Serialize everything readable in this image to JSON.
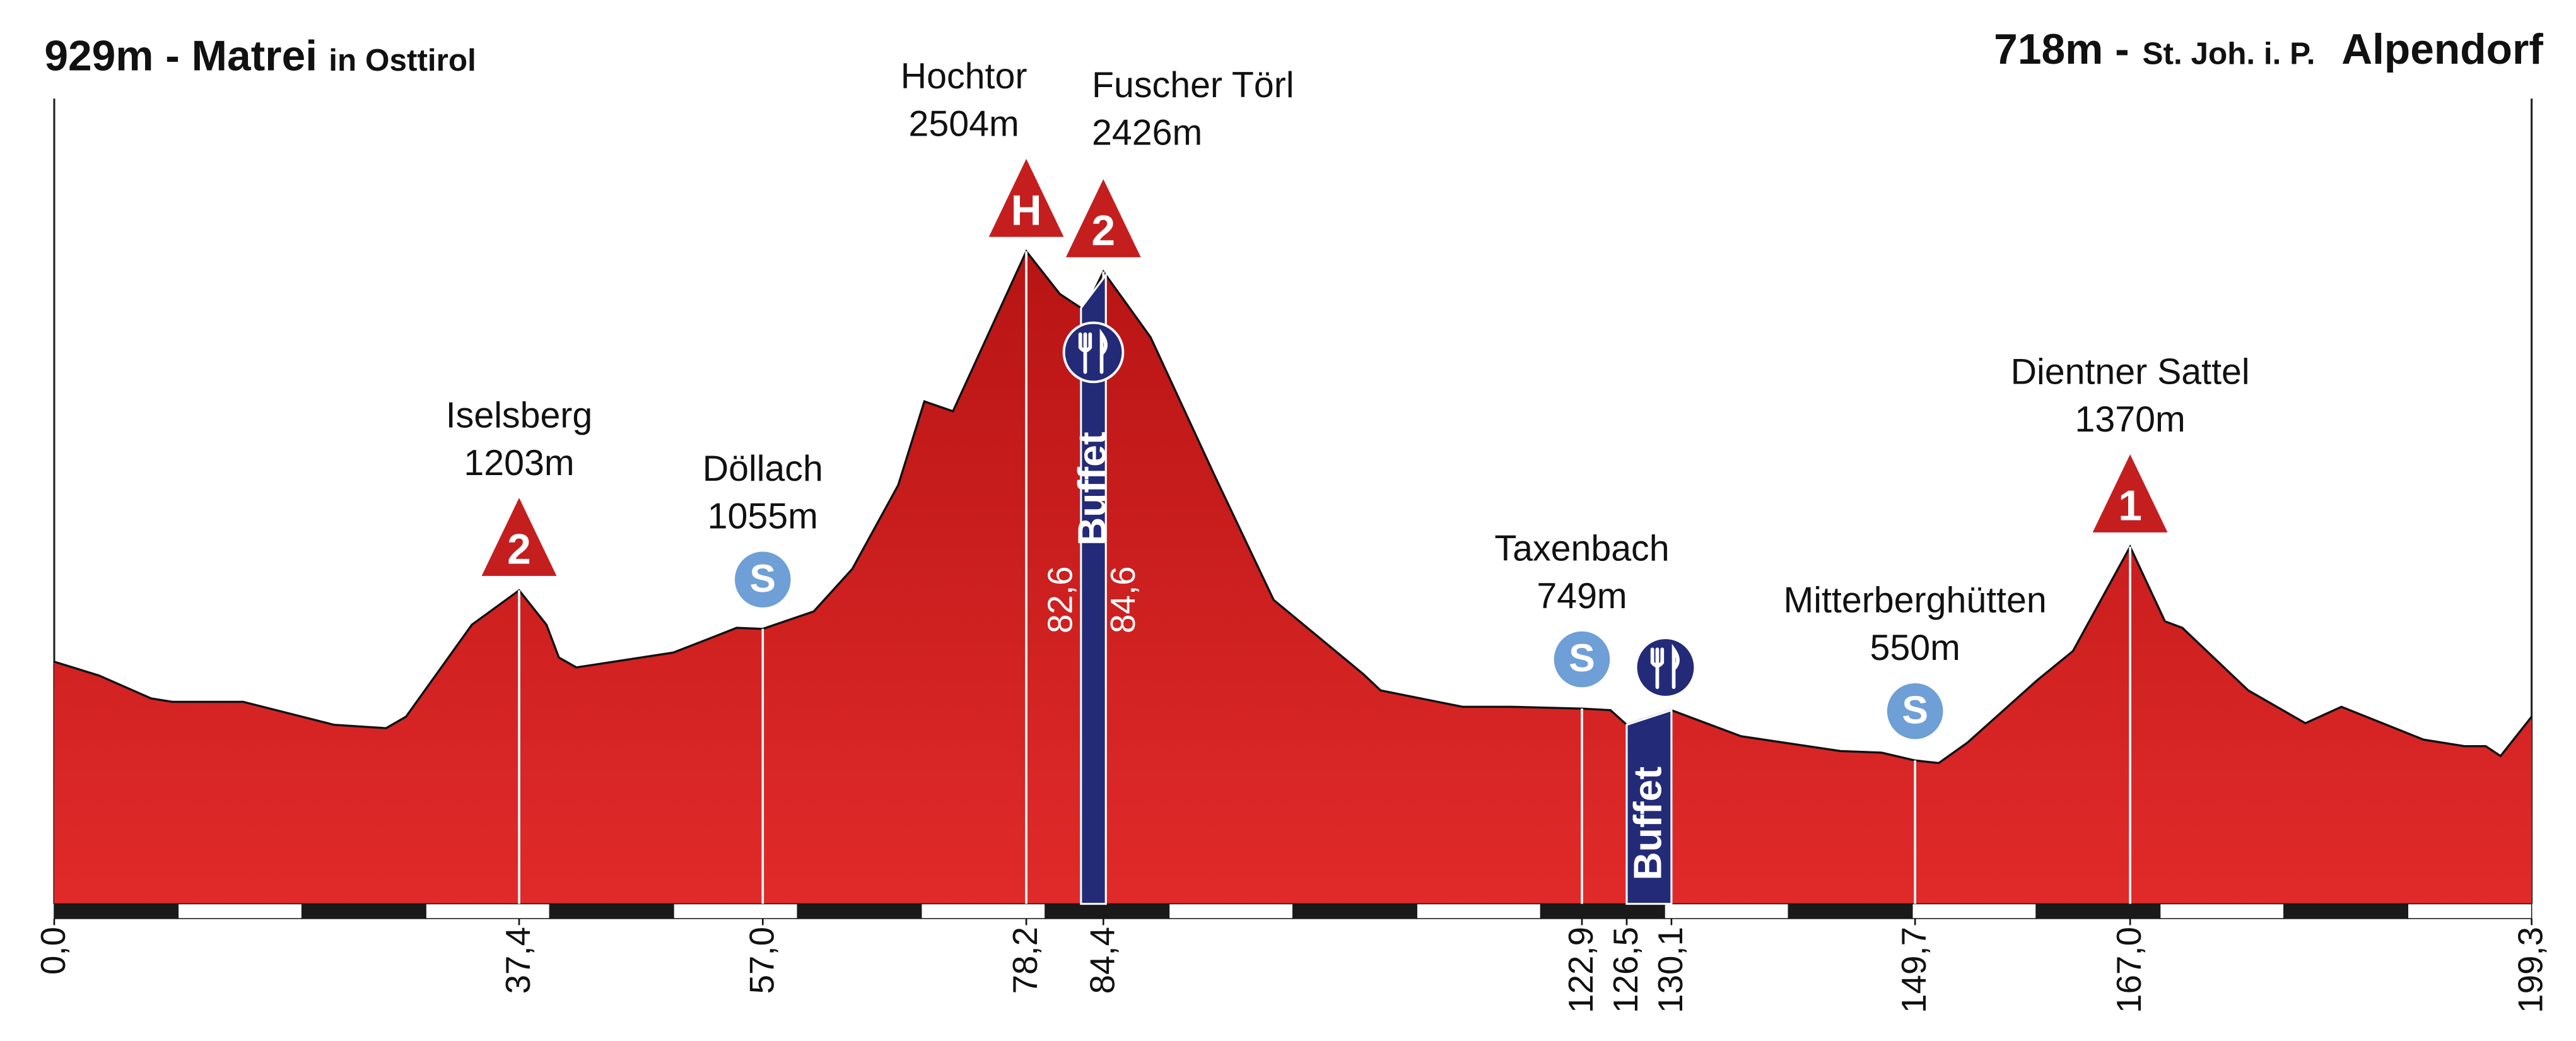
{
  "chart_data": {
    "type": "area",
    "title_left": {
      "main": "929m - Matrei",
      "sub": "in Osttirol"
    },
    "title_right": {
      "main": "718m -",
      "sub": "St. Joh. i. P.",
      "end": "Alpendorf"
    },
    "x": [
      0,
      3.6,
      7.8,
      9.5,
      15.2,
      22.5,
      26.7,
      28.3,
      33.6,
      37.4,
      39.6,
      40.6,
      42.0,
      49.8,
      52.5,
      54.9,
      57.0,
      61.1,
      64.2,
      67.9,
      70.0,
      72.3,
      78.2,
      80.9,
      82.9,
      84.4,
      88.2,
      93.4,
      98.1,
      105.3,
      106.7,
      113.3,
      117.2,
      122.9,
      125.2,
      126.5,
      130.1,
      135.7,
      143.7,
      147.0,
      149.7,
      151.6,
      153.9,
      159.5,
      162.4,
      167.0,
      169.8,
      171.2,
      176.5,
      181.1,
      184.0,
      190.6,
      193.9,
      195.6,
      196.8,
      199.3
    ],
    "values": [
      929,
      876,
      788,
      775,
      775,
      687,
      674,
      718,
      1071,
      1203,
      1071,
      945,
      907,
      964,
      1014,
      1059,
      1055,
      1122,
      1285,
      1607,
      1928,
      1890,
      2504,
      2340,
      2277,
      2426,
      2174,
      1638,
      1166,
      882,
      819,
      756,
      756,
      749,
      743,
      687,
      743,
      643,
      586,
      580,
      550,
      540,
      618,
      857,
      970,
      1370,
      1084,
      1059,
      819,
      693,
      756,
      630,
      605,
      605,
      567,
      718
    ],
    "color": "#d42424",
    "xlim": [
      0,
      199.3
    ],
    "ylim": [
      0,
      3090
    ],
    "xticks": [
      {
        "value": 0,
        "label": "0,0"
      },
      {
        "value": 37.4,
        "label": "37,4"
      },
      {
        "value": 57.0,
        "label": "57,0"
      },
      {
        "value": 78.2,
        "label": "78,2"
      },
      {
        "value": 84.4,
        "label": "84,4"
      },
      {
        "value": 122.9,
        "label": "122,9"
      },
      {
        "value": 126.5,
        "label": "126,5"
      },
      {
        "value": 130.1,
        "label": "130,1"
      },
      {
        "value": 149.7,
        "label": "149,7"
      },
      {
        "value": 167.0,
        "label": "167,0"
      },
      {
        "value": 199.3,
        "label": "199,3"
      }
    ],
    "annotations": [
      {
        "name": "Iselsberg",
        "label": "1203m",
        "x": 37.4,
        "marker": "2",
        "marker_type": "climb"
      },
      {
        "name": "Döllach",
        "label": "1055m",
        "x": 57.0,
        "marker": "S",
        "marker_type": "sprint"
      },
      {
        "name": "Hochtor",
        "label": "2504m",
        "x": 78.2,
        "marker": "H",
        "marker_type": "climb"
      },
      {
        "name": "Fuscher Törl",
        "label": "2426m",
        "x": 84.4,
        "marker": "2",
        "marker_type": "climb"
      },
      {
        "name": "Taxenbach",
        "label": "749m",
        "x": 122.9,
        "marker": "S",
        "marker_type": "sprint"
      },
      {
        "name": "Mitterberghütten",
        "label": "550m",
        "x": 149.7,
        "marker": "S",
        "marker_type": "sprint"
      },
      {
        "name": "Dientner Sattel",
        "label": "1370m",
        "x": 167.0,
        "marker": "1",
        "marker_type": "climb"
      }
    ],
    "buffets": [
      {
        "label": "Buffet",
        "from": {
          "value": 82.6,
          "label": "82,6"
        },
        "to": {
          "value": 84.6,
          "label": "84,6"
        }
      },
      {
        "label": "Buffet",
        "from": 126.5,
        "to": 130.1
      }
    ]
  }
}
